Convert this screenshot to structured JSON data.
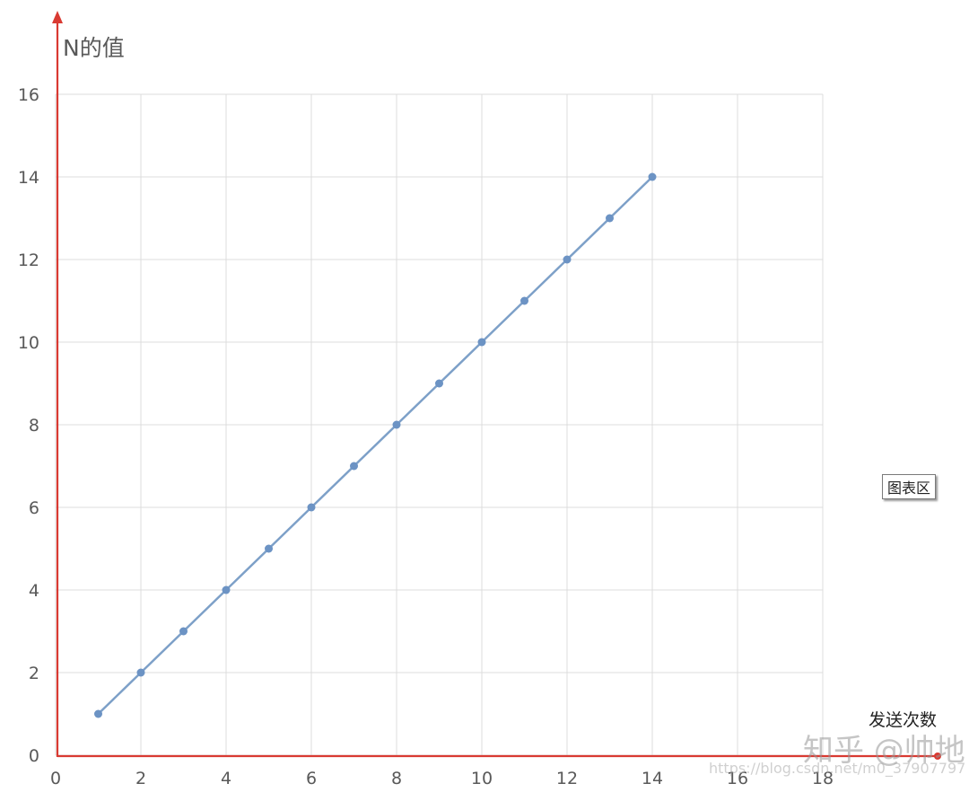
{
  "chart_data": {
    "type": "line",
    "ylabel": "N的值",
    "xlabel": "发送次数",
    "xlim": [
      0,
      18
    ],
    "ylim": [
      0,
      16
    ],
    "xticks": [
      0,
      2,
      4,
      6,
      8,
      10,
      12,
      14,
      16,
      18
    ],
    "yticks": [
      0,
      2,
      4,
      6,
      8,
      10,
      12,
      14,
      16
    ],
    "grid": true,
    "x": [
      1,
      2,
      3,
      4,
      5,
      6,
      7,
      8,
      9,
      10,
      11,
      12,
      13,
      14
    ],
    "series": [
      {
        "values": [
          1,
          2,
          3,
          4,
          5,
          6,
          7,
          8,
          9,
          10,
          11,
          12,
          13,
          14
        ]
      }
    ]
  },
  "annotations": {
    "chart_area_label": "图表区",
    "watermark": "知乎 @帅地",
    "watermark_url": "https://blog.csdn.net/m0_37907797"
  },
  "colors": {
    "axis": "#d93a32",
    "series": "#7da0c8",
    "point": "#6c93c4",
    "grid": "#dcdcdc"
  }
}
